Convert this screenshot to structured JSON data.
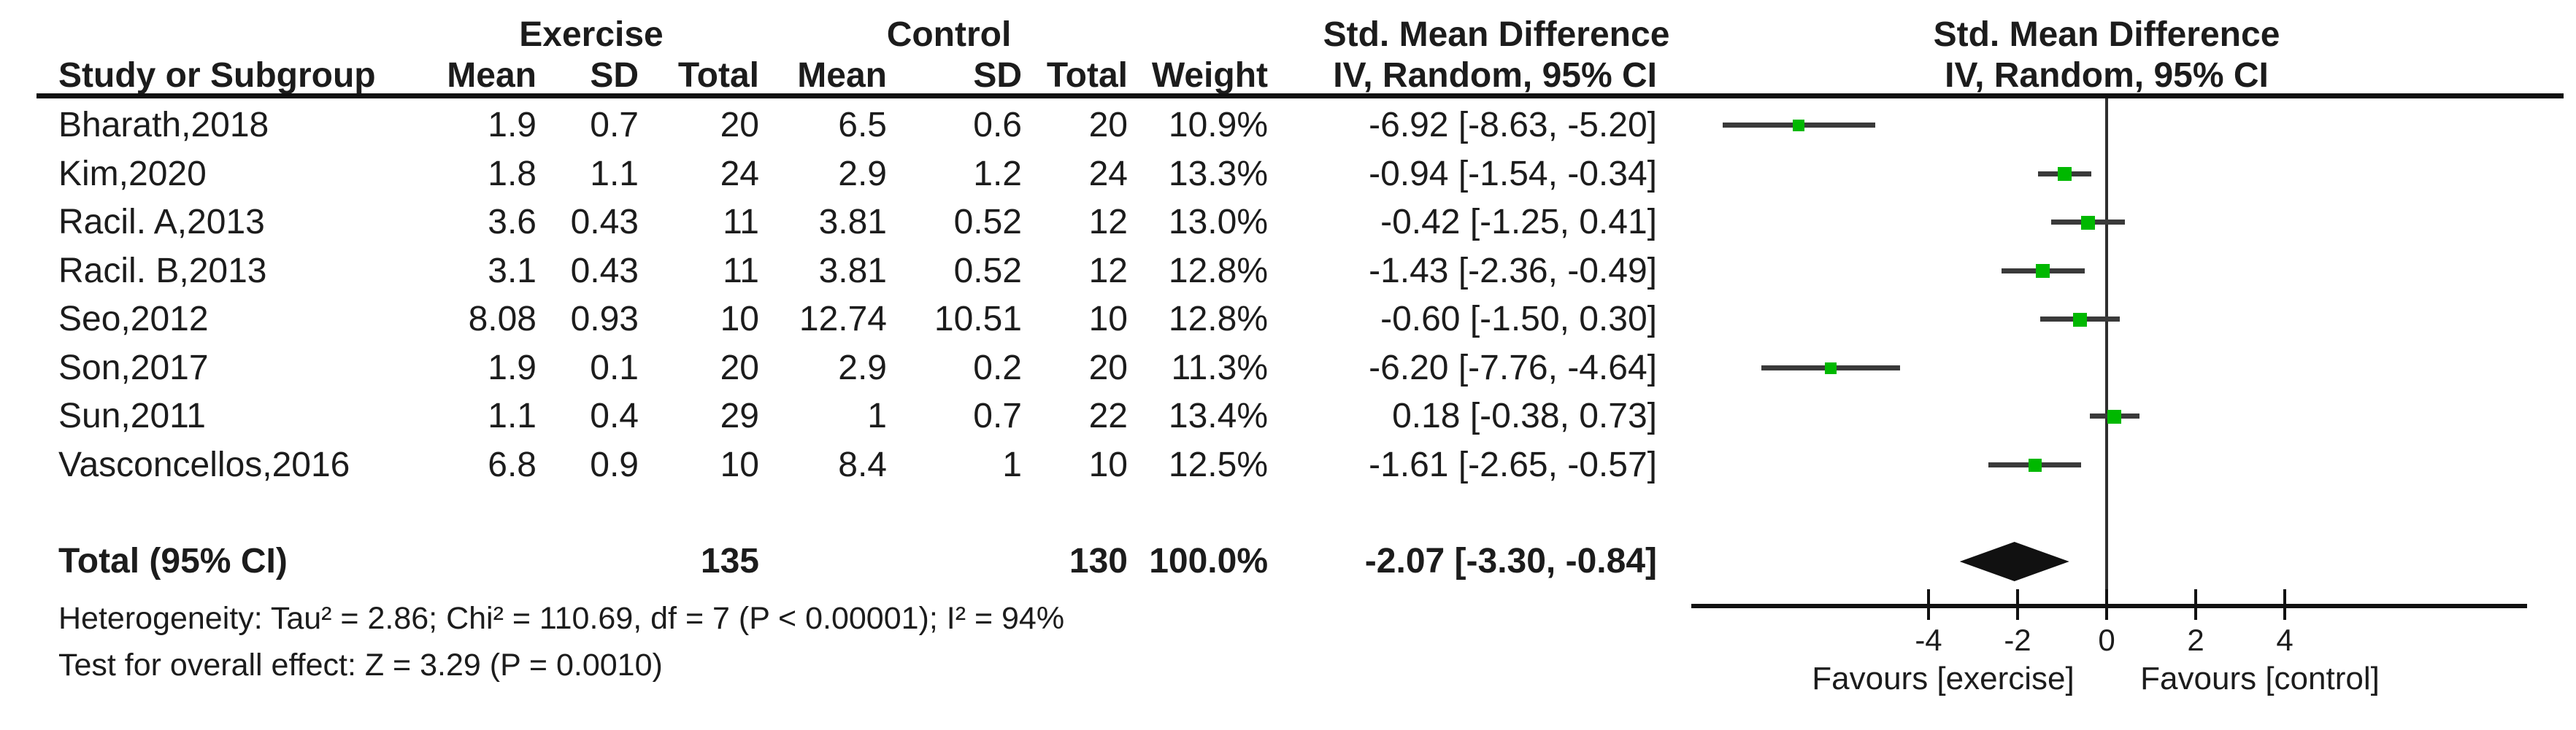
{
  "chart_data": {
    "type": "forest",
    "effect_measure": "Std. Mean Difference",
    "method": "IV, Random, 95% CI",
    "columns": {
      "study": "Study or Subgroup",
      "group1": "Exercise",
      "group2": "Control",
      "mean": "Mean",
      "sd": "SD",
      "total": "Total",
      "weight": "Weight",
      "effect_line1": "Std. Mean Difference",
      "effect_line2": "IV, Random, 95% CI"
    },
    "studies": [
      {
        "name": "Bharath,2018",
        "ex_mean": "1.9",
        "ex_sd": "0.7",
        "ex_total": "20",
        "c_mean": "6.5",
        "c_sd": "0.6",
        "c_total": "20",
        "weight": "10.9%",
        "weight_pct": 10.9,
        "smd": -6.92,
        "ci_lo": -8.63,
        "ci_hi": -5.2,
        "ci_text": "-6.92 [-8.63, -5.20]"
      },
      {
        "name": "Kim,2020",
        "ex_mean": "1.8",
        "ex_sd": "1.1",
        "ex_total": "24",
        "c_mean": "2.9",
        "c_sd": "1.2",
        "c_total": "24",
        "weight": "13.3%",
        "weight_pct": 13.3,
        "smd": -0.94,
        "ci_lo": -1.54,
        "ci_hi": -0.34,
        "ci_text": "-0.94 [-1.54, -0.34]"
      },
      {
        "name": "Racil. A,2013",
        "ex_mean": "3.6",
        "ex_sd": "0.43",
        "ex_total": "11",
        "c_mean": "3.81",
        "c_sd": "0.52",
        "c_total": "12",
        "weight": "13.0%",
        "weight_pct": 13.0,
        "smd": -0.42,
        "ci_lo": -1.25,
        "ci_hi": 0.41,
        "ci_text": "-0.42 [-1.25, 0.41]"
      },
      {
        "name": "Racil. B,2013",
        "ex_mean": "3.1",
        "ex_sd": "0.43",
        "ex_total": "11",
        "c_mean": "3.81",
        "c_sd": "0.52",
        "c_total": "12",
        "weight": "12.8%",
        "weight_pct": 12.8,
        "smd": -1.43,
        "ci_lo": -2.36,
        "ci_hi": -0.49,
        "ci_text": "-1.43 [-2.36, -0.49]"
      },
      {
        "name": "Seo,2012",
        "ex_mean": "8.08",
        "ex_sd": "0.93",
        "ex_total": "10",
        "c_mean": "12.74",
        "c_sd": "10.51",
        "c_total": "10",
        "weight": "12.8%",
        "weight_pct": 12.8,
        "smd": -0.6,
        "ci_lo": -1.5,
        "ci_hi": 0.3,
        "ci_text": "-0.60 [-1.50, 0.30]"
      },
      {
        "name": "Son,2017",
        "ex_mean": "1.9",
        "ex_sd": "0.1",
        "ex_total": "20",
        "c_mean": "2.9",
        "c_sd": "0.2",
        "c_total": "20",
        "weight": "11.3%",
        "weight_pct": 11.3,
        "smd": -6.2,
        "ci_lo": -7.76,
        "ci_hi": -4.64,
        "ci_text": "-6.20 [-7.76, -4.64]"
      },
      {
        "name": "Sun,2011",
        "ex_mean": "1.1",
        "ex_sd": "0.4",
        "ex_total": "29",
        "c_mean": "1",
        "c_sd": "0.7",
        "c_total": "22",
        "weight": "13.4%",
        "weight_pct": 13.4,
        "smd": 0.18,
        "ci_lo": -0.38,
        "ci_hi": 0.73,
        "ci_text": "0.18 [-0.38, 0.73]"
      },
      {
        "name": "Vasconcellos,2016",
        "ex_mean": "6.8",
        "ex_sd": "0.9",
        "ex_total": "10",
        "c_mean": "8.4",
        "c_sd": "1",
        "c_total": "10",
        "weight": "12.5%",
        "weight_pct": 12.5,
        "smd": -1.61,
        "ci_lo": -2.65,
        "ci_hi": -0.57,
        "ci_text": "-1.61 [-2.65, -0.57]"
      }
    ],
    "total": {
      "label": "Total (95% CI)",
      "ex_total": "135",
      "c_total": "130",
      "weight": "100.0%",
      "smd": -2.07,
      "ci_lo": -3.3,
      "ci_hi": -0.84,
      "ci_text": "-2.07 [-3.30, -0.84]"
    },
    "axis": {
      "ticks": [
        -4,
        -2,
        0,
        2,
        4
      ],
      "xmin": -9.4,
      "xmax": 9.5,
      "favours_left": "Favours [exercise]",
      "favours_right": "Favours [control]"
    },
    "footnotes": {
      "heterogeneity": "Heterogeneity: Tau² = 2.86; Chi² = 110.69, df = 7 (P < 0.00001); I² = 94%",
      "overall_effect": "Test for overall effect: Z = 3.29 (P = 0.0010)"
    },
    "colors": {
      "marker": "#00b800",
      "ci_line": "#3a3a3a",
      "diamond": "#111111"
    }
  }
}
